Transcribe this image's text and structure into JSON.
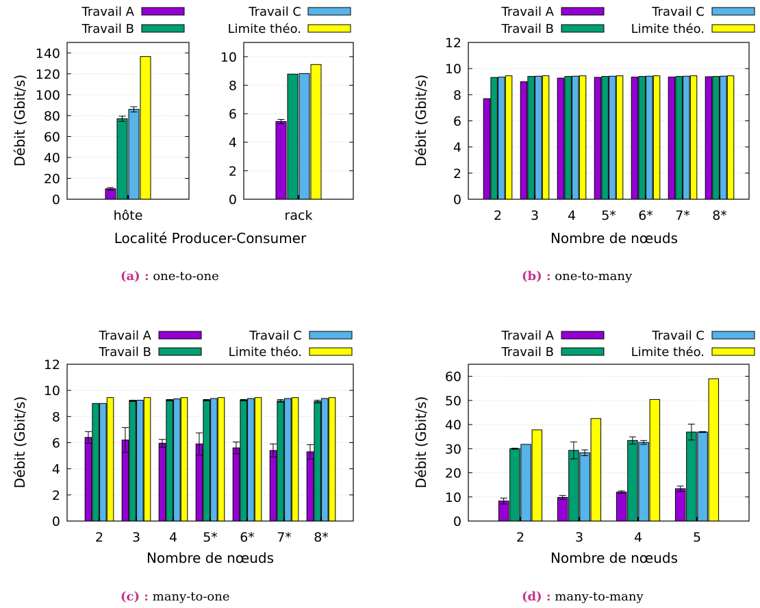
{
  "legend": [
    "Travail A",
    "Travail B",
    "Travail C",
    "Limite théo."
  ],
  "colors": {
    "Travail A": "#9400d3",
    "Travail B": "#009e73",
    "Travail C": "#56b4e9",
    "Limite théo.": "#ffff00"
  },
  "captions": [
    {
      "label": "(a) :",
      "text": "one-to-one"
    },
    {
      "label": "(b) :",
      "text": "one-to-many"
    },
    {
      "label": "(c) :",
      "text": "many-to-one"
    },
    {
      "label": "(d) :",
      "text": "many-to-many"
    }
  ],
  "chart_data": [
    {
      "id": "a-hote",
      "type": "bar",
      "ylabel": "Débit (Gbit/s)",
      "xlabel": "Localité Producer-Consumer",
      "categories": [
        "hôte"
      ],
      "ylim": [
        0,
        150
      ],
      "yticks": [
        0,
        20,
        40,
        60,
        80,
        100,
        120,
        140
      ],
      "series": [
        {
          "name": "Travail A",
          "values": [
            10
          ],
          "err": [
            1.2
          ]
        },
        {
          "name": "Travail B",
          "values": [
            77
          ],
          "err": [
            2.5
          ]
        },
        {
          "name": "Travail C",
          "values": [
            86
          ],
          "err": [
            2.5
          ]
        },
        {
          "name": "Limite théo.",
          "values": [
            136.5
          ],
          "err": [
            0
          ]
        }
      ]
    },
    {
      "id": "a-rack",
      "type": "bar",
      "ylabel": "",
      "xlabel": "",
      "categories": [
        "rack"
      ],
      "ylim": [
        0,
        11
      ],
      "yticks": [
        0,
        2,
        4,
        6,
        8,
        10
      ],
      "series": [
        {
          "name": "Travail A",
          "values": [
            5.45
          ],
          "err": [
            0.15
          ]
        },
        {
          "name": "Travail B",
          "values": [
            8.78
          ],
          "err": [
            0
          ]
        },
        {
          "name": "Travail C",
          "values": [
            8.82
          ],
          "err": [
            0
          ]
        },
        {
          "name": "Limite théo.",
          "values": [
            9.45
          ],
          "err": [
            0
          ]
        }
      ]
    },
    {
      "id": "b",
      "type": "bar",
      "ylabel": "Débit (Gbit/s)",
      "xlabel": "Nombre de nœuds",
      "categories": [
        "2",
        "3",
        "4",
        "5*",
        "6*",
        "7*",
        "8*"
      ],
      "ylim": [
        0,
        12
      ],
      "yticks": [
        0,
        2,
        4,
        6,
        8,
        10,
        12
      ],
      "series": [
        {
          "name": "Travail A",
          "values": [
            7.7,
            9.0,
            9.27,
            9.33,
            9.35,
            9.35,
            9.38
          ],
          "err": [
            0,
            0,
            0,
            0,
            0,
            0,
            0
          ]
        },
        {
          "name": "Travail B",
          "values": [
            9.32,
            9.4,
            9.4,
            9.4,
            9.4,
            9.4,
            9.4
          ],
          "err": [
            0,
            0,
            0,
            0,
            0,
            0,
            0
          ]
        },
        {
          "name": "Travail C",
          "values": [
            9.35,
            9.42,
            9.42,
            9.42,
            9.42,
            9.42,
            9.42
          ],
          "err": [
            0,
            0,
            0,
            0,
            0,
            0,
            0
          ]
        },
        {
          "name": "Limite théo.",
          "values": [
            9.45,
            9.45,
            9.45,
            9.45,
            9.45,
            9.45,
            9.45
          ],
          "err": [
            0,
            0,
            0,
            0,
            0,
            0,
            0
          ]
        }
      ]
    },
    {
      "id": "c",
      "type": "bar",
      "ylabel": "Débit (Gbit/s)",
      "xlabel": "Nombre de nœuds",
      "categories": [
        "2",
        "3",
        "4",
        "5*",
        "6*",
        "7*",
        "8*"
      ],
      "ylim": [
        0,
        12
      ],
      "yticks": [
        0,
        2,
        4,
        6,
        8,
        10,
        12
      ],
      "series": [
        {
          "name": "Travail A",
          "values": [
            6.4,
            6.2,
            5.95,
            5.9,
            5.6,
            5.4,
            5.3
          ],
          "err": [
            0.45,
            0.95,
            0.3,
            0.85,
            0.45,
            0.5,
            0.55
          ]
        },
        {
          "name": "Travail B",
          "values": [
            9.0,
            9.2,
            9.25,
            9.25,
            9.25,
            9.2,
            9.15
          ],
          "err": [
            0,
            0.05,
            0.05,
            0.05,
            0.05,
            0.1,
            0.1
          ]
        },
        {
          "name": "Travail C",
          "values": [
            9.0,
            9.25,
            9.35,
            9.38,
            9.38,
            9.38,
            9.38
          ],
          "err": [
            0,
            0,
            0,
            0,
            0,
            0,
            0
          ]
        },
        {
          "name": "Limite théo.",
          "values": [
            9.45,
            9.45,
            9.45,
            9.45,
            9.45,
            9.45,
            9.45
          ],
          "err": [
            0,
            0,
            0,
            0,
            0,
            0,
            0
          ]
        }
      ]
    },
    {
      "id": "d",
      "type": "bar",
      "ylabel": "Débit (Gbit/s)",
      "xlabel": "Nombre de nœuds",
      "categories": [
        "2",
        "3",
        "4",
        "5"
      ],
      "ylim": [
        0,
        65
      ],
      "yticks": [
        0,
        10,
        20,
        30,
        40,
        50,
        60
      ],
      "series": [
        {
          "name": "Travail A",
          "values": [
            8.3,
            9.8,
            12.0,
            13.4
          ],
          "err": [
            1.2,
            0.8,
            0.5,
            1.1
          ]
        },
        {
          "name": "Travail B",
          "values": [
            30.0,
            29.3,
            33.4,
            36.9
          ],
          "err": [
            0.2,
            3.5,
            1.5,
            3.3
          ]
        },
        {
          "name": "Travail C",
          "values": [
            31.8,
            28.3,
            32.6,
            36.9
          ],
          "err": [
            0,
            1.2,
            0.8,
            0.2
          ]
        },
        {
          "name": "Limite théo.",
          "values": [
            37.8,
            42.5,
            50.4,
            59.0
          ],
          "err": [
            0,
            0,
            0,
            0
          ]
        }
      ]
    }
  ]
}
